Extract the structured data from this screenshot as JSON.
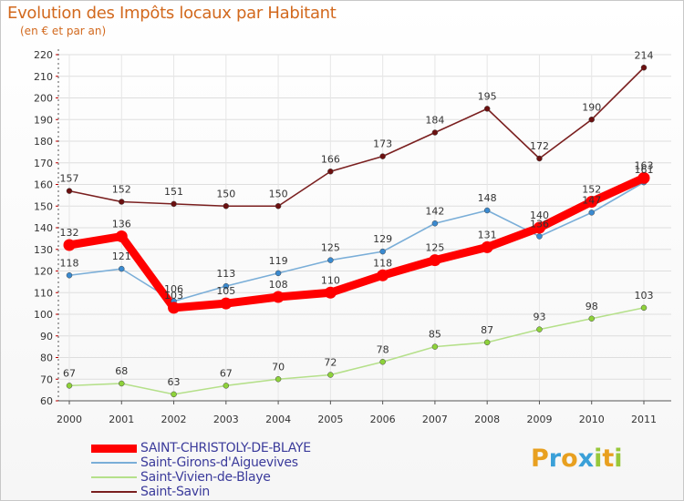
{
  "header": {
    "title": "Evolution des Impôts locaux par Habitant",
    "subtitle": "(en € et par an)"
  },
  "logo": {
    "letters": [
      "P",
      "r",
      "o",
      "x",
      "i",
      "t",
      "i"
    ],
    "colors": [
      "#e8a020",
      "#3aa0d8",
      "#e8a020",
      "#3aa0d8",
      "#98c83a",
      "#e8a020",
      "#98c83a"
    ]
  },
  "chart_data": {
    "type": "line",
    "title": "Evolution des Impôts locaux par Habitant",
    "subtitle": "(en € et par an)",
    "x": [
      "2000",
      "2001",
      "2002",
      "2003",
      "2004",
      "2005",
      "2006",
      "2007",
      "2008",
      "2009",
      "2010",
      "2011"
    ],
    "ylim": [
      60,
      220
    ],
    "yticks": [
      60,
      70,
      80,
      90,
      100,
      110,
      120,
      130,
      140,
      150,
      160,
      170,
      180,
      190,
      200,
      210,
      220
    ],
    "grid": true,
    "legend_position": "bottom-left",
    "series": [
      {
        "name": "Saint-Savin",
        "color": "#7a1f1f",
        "marker": "#6b1010",
        "values": [
          157,
          152,
          151,
          150,
          150,
          166,
          173,
          184,
          195,
          172,
          190,
          214
        ]
      },
      {
        "name": "Saint-Vivien-de-Blaye",
        "color": "#b5e08a",
        "marker": "#8ed23a",
        "values": [
          67,
          68,
          63,
          67,
          70,
          72,
          78,
          85,
          87,
          93,
          98,
          103
        ]
      },
      {
        "name": "Saint-Girons-d'Aiguevives",
        "color": "#7aaed8",
        "marker": "#3a8ad0",
        "values": [
          118,
          121,
          106,
          113,
          119,
          125,
          129,
          142,
          148,
          136,
          147,
          161
        ]
      },
      {
        "name": "SAINT-CHRISTOLY-DE-BLAYE",
        "color": "#ff0000",
        "marker": "#ff0000",
        "values": [
          132,
          136,
          103,
          105,
          108,
          110,
          118,
          125,
          131,
          140,
          152,
          163
        ]
      }
    ],
    "label_texts": [
      [
        "157",
        "152",
        "151",
        "150",
        "150",
        "166",
        "173",
        "184",
        "195",
        "172",
        "190",
        "214"
      ],
      [
        "67",
        "68",
        "63",
        "67",
        "70",
        "72",
        "78",
        "85",
        "87",
        "93",
        "98",
        "103"
      ],
      [
        "118",
        "121",
        "106",
        "113",
        "119",
        "125",
        "129",
        "142",
        "148",
        "136",
        "147",
        "161"
      ],
      [
        "132",
        "136",
        "103",
        "105",
        "108",
        "110",
        "118",
        "125",
        "131",
        "140",
        "152",
        "163"
      ]
    ],
    "legend_order": [
      "SAINT-CHRISTOLY-DE-BLAYE",
      "Saint-Girons-d'Aiguevives",
      "Saint-Vivien-de-Blaye",
      "Saint-Savin"
    ]
  }
}
